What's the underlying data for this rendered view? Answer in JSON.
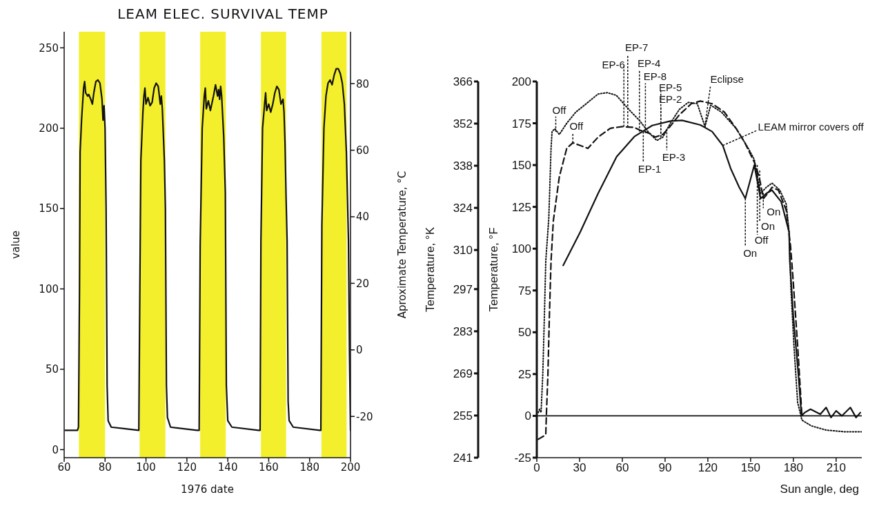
{
  "chart_data": [
    {
      "type": "line",
      "title": "LEAM ELEC. SURVIVAL TEMP",
      "xlabel": "1976 date",
      "ylabel": "value",
      "y2label": "Aproximate Temperature, °C",
      "xlim": [
        60,
        200
      ],
      "xticks": [
        60,
        80,
        100,
        120,
        140,
        160,
        180,
        200
      ],
      "ylim": [
        -5,
        260
      ],
      "yticks": [
        0,
        50,
        100,
        150,
        200,
        250
      ],
      "y2lim": [
        -32.4,
        95.6
      ],
      "y2ticks": [
        -20,
        0,
        20,
        40,
        60,
        80
      ],
      "bands": [
        {
          "axis": "x",
          "from": 67.2,
          "to": 80.0,
          "color": "#f3ef2c"
        },
        {
          "axis": "x",
          "from": 96.9,
          "to": 109.5,
          "color": "#f3ef2c"
        },
        {
          "axis": "x",
          "from": 126.5,
          "to": 139.0,
          "color": "#f3ef2c"
        },
        {
          "axis": "x",
          "from": 156.2,
          "to": 168.5,
          "color": "#f3ef2c"
        },
        {
          "axis": "x",
          "from": 185.8,
          "to": 198.1,
          "color": "#f3ef2c"
        }
      ],
      "series": [
        {
          "color": "#111111",
          "line_style": "solid",
          "x": [
            60.5,
            66.5,
            67,
            67.5,
            67.8,
            68.5,
            69.5,
            70,
            70.5,
            71.5,
            72,
            73,
            73.8,
            74.5,
            75.5,
            76.5,
            77.5,
            78.5,
            79,
            79.5,
            80,
            80.5,
            81,
            81.5,
            83,
            90,
            96.5,
            97,
            97.5,
            98.5,
            99,
            99.5,
            100,
            101,
            102,
            103,
            104,
            105,
            106,
            107,
            107.5,
            108,
            109,
            109.5,
            110,
            110.5,
            112,
            125,
            126,
            126.5,
            127.5,
            128.5,
            129,
            129.5,
            130.5,
            131.5,
            133,
            134,
            135,
            135.5,
            136,
            136.5,
            137,
            138,
            138.8,
            139.3,
            140,
            142,
            155,
            155.8,
            156.2,
            157,
            158,
            158.5,
            159,
            160,
            161,
            162,
            163,
            164,
            165,
            166,
            167,
            167.5,
            168,
            168.5,
            169,
            169.5,
            170,
            172,
            185,
            185.5,
            186,
            187,
            188,
            189,
            190,
            191,
            192,
            193,
            194,
            195,
            196,
            197,
            198,
            199,
            199.5,
            200
          ],
          "values": [
            12,
            12,
            14,
            100,
            185,
            205,
            225,
            229,
            222,
            220,
            221,
            218,
            215,
            222,
            229,
            230,
            228,
            218,
            205,
            214,
            200,
            150,
            40,
            18,
            14,
            13,
            12,
            100,
            180,
            210,
            220,
            225,
            215,
            219,
            214,
            216,
            225,
            228,
            226,
            215,
            220,
            212,
            180,
            150,
            40,
            20,
            14,
            12,
            12,
            127,
            200,
            220,
            225,
            212,
            217,
            211,
            220,
            227,
            220,
            224,
            218,
            226,
            220,
            195,
            160,
            40,
            18,
            14,
            12,
            12,
            130,
            200,
            215,
            222,
            211,
            215,
            210,
            215,
            222,
            226,
            224,
            215,
            218,
            210,
            190,
            157,
            130,
            30,
            18,
            14,
            12,
            12,
            140,
            200,
            220,
            228,
            230,
            227,
            233,
            237,
            237,
            234,
            228,
            215,
            185,
            130,
            60,
            12
          ]
        }
      ]
    },
    {
      "type": "line",
      "xlabel": "Sun angle, deg",
      "ylabel": "Temperature, °F",
      "y2label": "Temperature, °K",
      "xlim": [
        0,
        228
      ],
      "xticks": [
        0,
        30,
        60,
        90,
        120,
        150,
        180,
        210
      ],
      "ylim": [
        -25,
        200
      ],
      "yticks": [
        -25,
        0,
        25,
        50,
        75,
        100,
        125,
        150,
        175,
        200
      ],
      "y2lim": [
        241,
        366
      ],
      "y2ticks": [
        241,
        255,
        269,
        283,
        297,
        310,
        324,
        338,
        352,
        366
      ],
      "ref_lines": [
        {
          "axis": "y",
          "value": 0,
          "color": "#111111",
          "line_style": "solid"
        }
      ],
      "series": [
        {
          "color": "#111111",
          "line_style": "solid",
          "x": [
            18.5,
            30.5,
            43,
            56,
            68.4,
            81,
            93.7,
            102,
            114.7,
            123,
            130.5,
            136,
            142,
            146.3,
            152.6,
            157,
            161,
            165,
            171.5,
            177,
            177.5,
            180,
            183.5,
            185.7,
            188,
            192,
            198.9,
            203,
            206.4,
            210,
            214,
            220,
            224,
            227
          ],
          "values": [
            90,
            110,
            133,
            155,
            167,
            173.7,
            176.3,
            176.7,
            174,
            170,
            161.7,
            148,
            136.7,
            130,
            150,
            130,
            133,
            135,
            128,
            110,
            92.7,
            59,
            25,
            0,
            2,
            4,
            1,
            5,
            -1,
            3,
            0,
            5,
            -1,
            2
          ]
        },
        {
          "color": "#111111",
          "line_style": "dashed",
          "x": [
            1,
            5,
            6.3,
            6.7,
            7.8,
            8.8,
            10,
            11.6,
            15.8,
            21,
            25.3,
            30.5,
            35.8,
            43,
            51.6,
            60,
            68.4,
            72.6,
            79,
            83,
            88.4,
            93.7,
            100,
            108.4,
            114.7,
            123,
            131.6,
            140,
            146,
            152.6,
            156,
            159,
            162,
            165,
            169.5,
            175,
            178,
            179.6,
            183,
            186
          ],
          "values": [
            -14,
            -12,
            -11,
            0,
            25,
            59,
            92.7,
            116.7,
            143,
            160,
            163.3,
            161.7,
            160,
            166.7,
            172,
            173,
            172.5,
            170.8,
            169,
            166.7,
            168.3,
            173.3,
            180,
            186.7,
            188.3,
            186.7,
            181.7,
            171.7,
            163.3,
            151.7,
            143,
            130,
            133,
            136.7,
            135,
            123,
            101.7,
            84,
            42,
            0
          ]
        },
        {
          "color": "#111111",
          "line_style": "dotted",
          "x": [
            1,
            2,
            3,
            4.2,
            5.3,
            6.3,
            8.4,
            10,
            10.7,
            12.6,
            15.8,
            21,
            27.4,
            34.7,
            43,
            49.5,
            55.8,
            61,
            66.3,
            72,
            79,
            84.2,
            88.4,
            93.7,
            100,
            106.3,
            112.6,
            118,
            122,
            129.5,
            140,
            148.4,
            152.6,
            157,
            161,
            165,
            170.5,
            175,
            177,
            178.3,
            180.4,
            183,
            186,
            192.6,
            203,
            215.8,
            227.8
          ],
          "values": [
            2,
            4,
            2,
            25,
            59,
            92.7,
            118,
            160,
            170,
            171.7,
            168.3,
            175,
            181.7,
            186.7,
            192.5,
            193.3,
            191.7,
            186.7,
            181.7,
            176.7,
            169,
            164.7,
            166.7,
            175,
            183.3,
            187.5,
            186.7,
            173,
            185.8,
            181.7,
            171.7,
            160,
            153.3,
            133,
            136.7,
            139.2,
            135,
            126.7,
            110,
            75.8,
            42,
            8,
            -2.5,
            -6,
            -8.5,
            -9.5,
            -9.5
          ]
        }
      ],
      "annotations": [
        {
          "text": "Off",
          "x": 13.3,
          "y": 170
        },
        {
          "text": "Off",
          "x": 25.3,
          "y": 163.3
        },
        {
          "text": "EP-6",
          "x": 61.1,
          "y": 173
        },
        {
          "text": "EP-7",
          "x": 63.8,
          "y": 172.8
        },
        {
          "text": "EP-4",
          "x": 72,
          "y": 170
        },
        {
          "text": "EP-8",
          "x": 76.2,
          "y": 169.2
        },
        {
          "text": "EP-5",
          "x": 87,
          "y": 166.7
        },
        {
          "text": "EP-2",
          "x": 87,
          "y": 166.7
        },
        {
          "text": "EP-1",
          "x": 74.7,
          "y": 170
        },
        {
          "text": "EP-3",
          "x": 91.2,
          "y": 171.7
        },
        {
          "text": "Eclipse",
          "x": 117.9,
          "y": 173.3
        },
        {
          "text": "LEAM mirror covers off",
          "x": 130.5,
          "y": 161.7
        },
        {
          "text": "On",
          "x": 146.3,
          "y": 130
        },
        {
          "text": "Off",
          "x": 154.7,
          "y": 150
        },
        {
          "text": "On",
          "x": 156.4,
          "y": 146.7
        },
        {
          "text": "On",
          "x": 158.9,
          "y": 133.3
        }
      ]
    }
  ]
}
